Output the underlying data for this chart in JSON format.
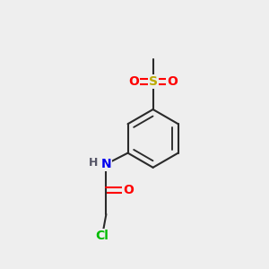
{
  "background_color": "#eeeeee",
  "bond_color": "#2a2a2a",
  "atom_colors": {
    "O": "#ff0000",
    "N": "#0000ee",
    "S": "#bbaa00",
    "Cl": "#00bb00",
    "H": "#555566"
  },
  "bond_width": 1.5,
  "figsize": [
    3.0,
    3.0
  ],
  "dpi": 100,
  "xlim": [
    0,
    10
  ],
  "ylim": [
    0,
    10
  ]
}
